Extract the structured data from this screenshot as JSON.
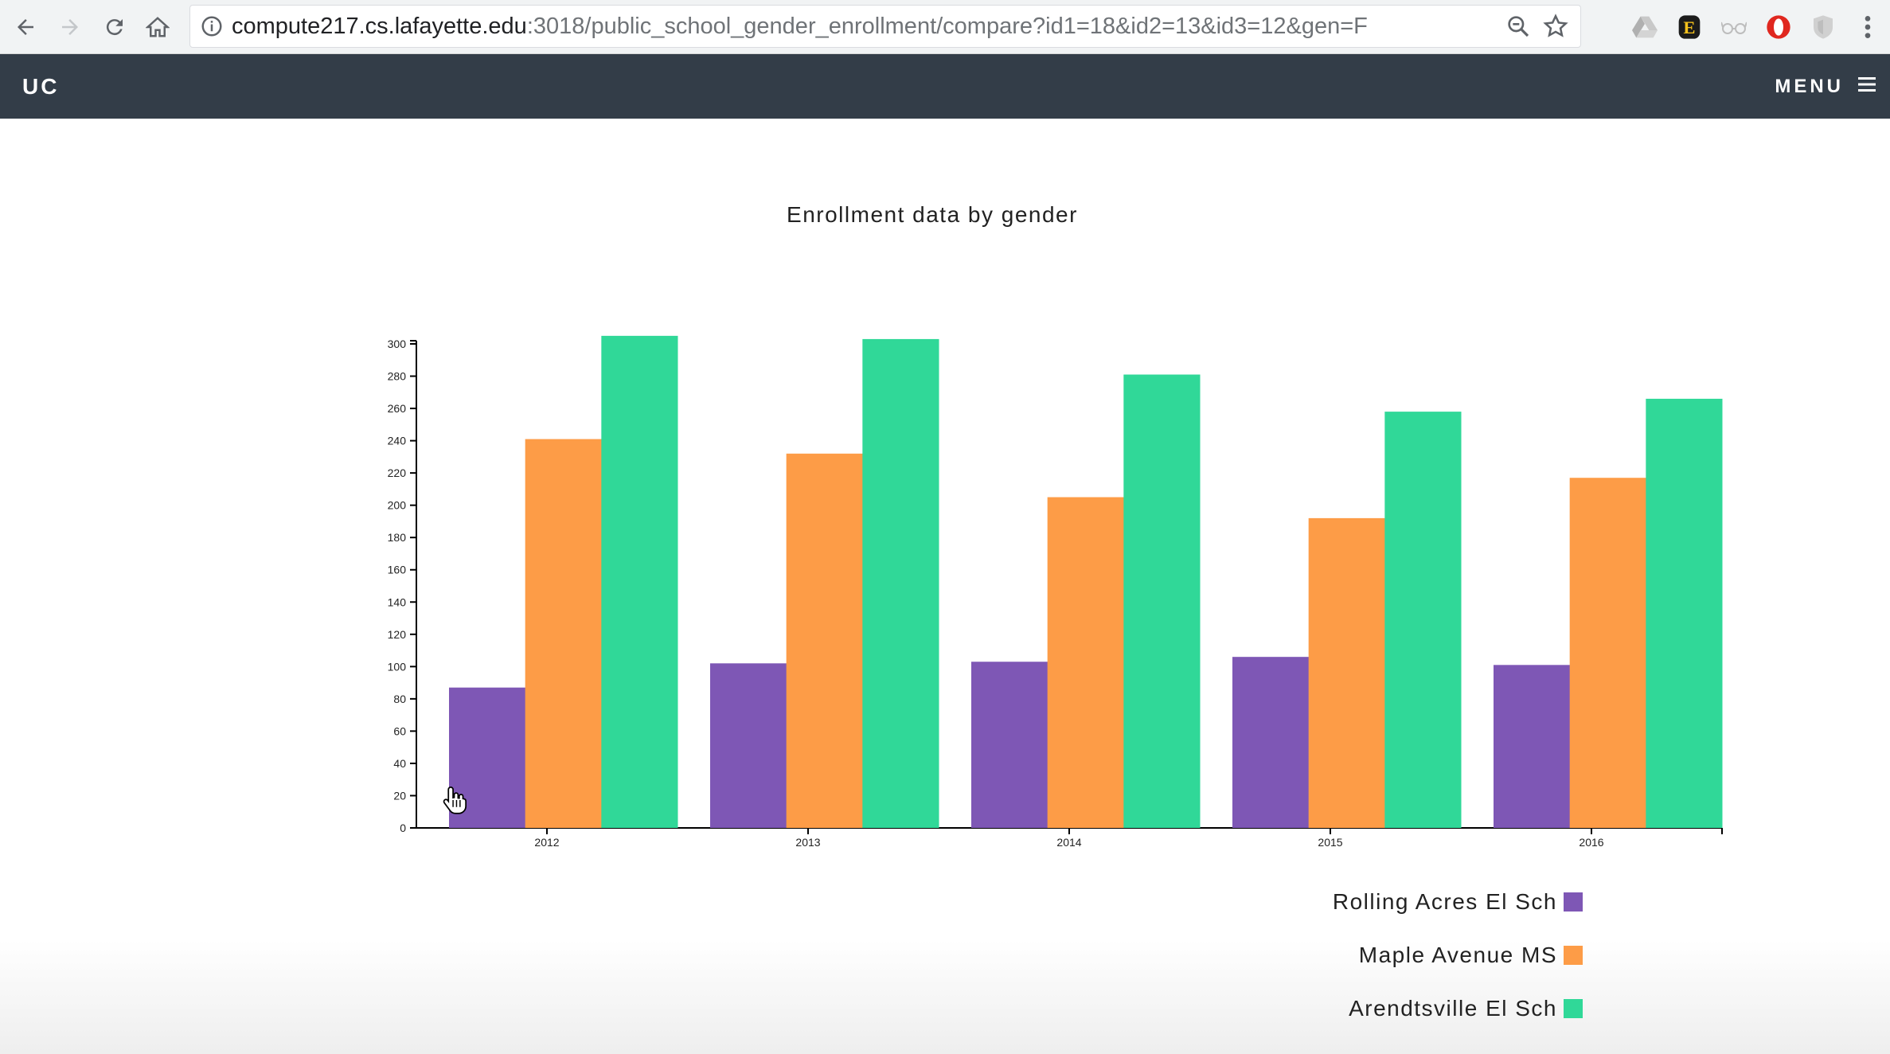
{
  "browser": {
    "url_host": "compute217.cs.lafayette.edu",
    "url_path": ":3018/public_school_gender_enrollment/compare?id1=18&id2=13&id3=12&gen=F"
  },
  "navbar": {
    "brand": "UC",
    "menu_label": "MENU"
  },
  "chart_data": {
    "type": "bar",
    "title": "Enrollment data by gender",
    "xlabel": "",
    "ylabel": "",
    "categories": [
      "2012",
      "2013",
      "2014",
      "2015",
      "2016"
    ],
    "ylim": [
      0,
      300
    ],
    "yticks": [
      0,
      20,
      40,
      60,
      80,
      100,
      120,
      140,
      160,
      180,
      200,
      220,
      240,
      260,
      280,
      300
    ],
    "grid": false,
    "legend_position": "bottom-right",
    "series": [
      {
        "name": "Rolling Acres El Sch",
        "color": "#7e57b5",
        "values": [
          87,
          102,
          103,
          106,
          101
        ]
      },
      {
        "name": "Maple Avenue MS",
        "color": "#fd9c47",
        "values": [
          241,
          232,
          205,
          192,
          217
        ]
      },
      {
        "name": "Arendtsville El Sch",
        "color": "#30d898",
        "values": [
          305,
          303,
          281,
          258,
          266
        ]
      }
    ]
  }
}
